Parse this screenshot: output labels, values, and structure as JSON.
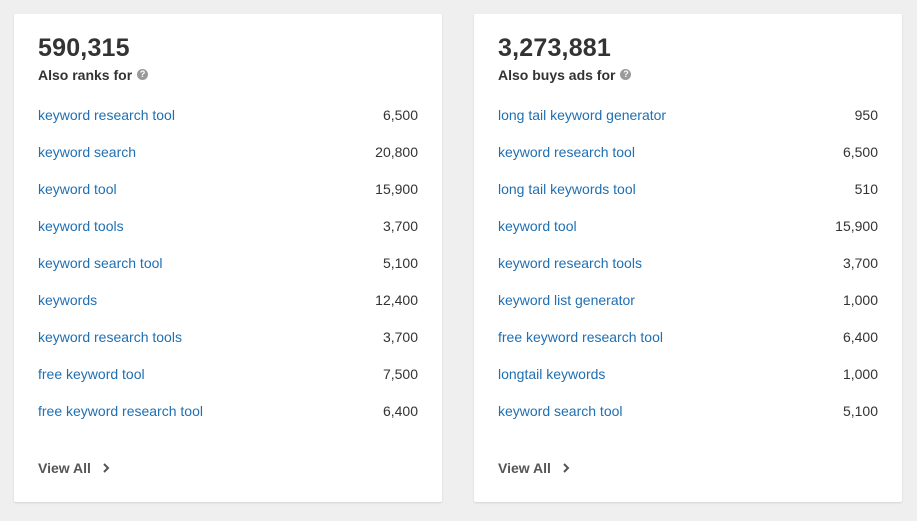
{
  "cards": [
    {
      "count": "590,315",
      "title": "Also ranks for",
      "help_icon": "?",
      "rows": [
        {
          "keyword": "keyword research tool",
          "volume": "6,500"
        },
        {
          "keyword": "keyword search",
          "volume": "20,800"
        },
        {
          "keyword": "keyword tool",
          "volume": "15,900"
        },
        {
          "keyword": "keyword tools",
          "volume": "3,700"
        },
        {
          "keyword": "keyword search tool",
          "volume": "5,100"
        },
        {
          "keyword": "keywords",
          "volume": "12,400"
        },
        {
          "keyword": "keyword research tools",
          "volume": "3,700"
        },
        {
          "keyword": "free keyword tool",
          "volume": "7,500"
        },
        {
          "keyword": "free keyword research tool",
          "volume": "6,400"
        }
      ],
      "view_all": "View All"
    },
    {
      "count": "3,273,881",
      "title": "Also buys ads for",
      "help_icon": "?",
      "rows": [
        {
          "keyword": "long tail keyword generator",
          "volume": "950"
        },
        {
          "keyword": "keyword research tool",
          "volume": "6,500"
        },
        {
          "keyword": "long tail keywords tool",
          "volume": "510"
        },
        {
          "keyword": "keyword tool",
          "volume": "15,900"
        },
        {
          "keyword": "keyword research tools",
          "volume": "3,700"
        },
        {
          "keyword": "keyword list generator",
          "volume": "1,000"
        },
        {
          "keyword": "free keyword research tool",
          "volume": "6,400"
        },
        {
          "keyword": "longtail keywords",
          "volume": "1,000"
        },
        {
          "keyword": "keyword search tool",
          "volume": "5,100"
        }
      ],
      "view_all": "View All"
    }
  ],
  "colors": {
    "link": "#1f6fb2",
    "text": "#333333",
    "background": "#efefef",
    "card": "#ffffff"
  }
}
